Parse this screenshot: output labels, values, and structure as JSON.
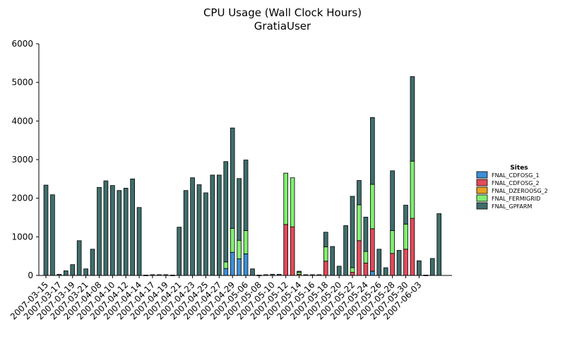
{
  "chart_data": {
    "type": "bar",
    "stacked": true,
    "title": "CPU Usage (Wall Clock Hours)",
    "subtitle": "GratiaUser",
    "ylim": [
      0,
      6000
    ],
    "yticks": [
      0,
      1000,
      2000,
      3000,
      4000,
      5000,
      6000
    ],
    "legend_title": "Sites",
    "legend_position": "right",
    "x_tick_labels": [
      "2007-03-15",
      "2007-03-17",
      "2007-03-19",
      "2007-03-21",
      "2007-04-08",
      "2007-04-10",
      "2007-04-12",
      "2007-04-14",
      "2007-04-17",
      "2007-04-19",
      "2007-04-21",
      "2007-04-23",
      "2007-04-25",
      "2007-04-27",
      "2007-04-29",
      "2007-05-06",
      "2007-05-08",
      "2007-05-10",
      "2007-05-12",
      "2007-05-14",
      "2007-05-16",
      "2007-05-18",
      "2007-05-20",
      "2007-05-22",
      "2007-05-24",
      "2007-05-26",
      "2007-05-28",
      "2007-05-30",
      "2007-06-03"
    ],
    "series": [
      {
        "name": "FNAL_CDFOSG_1",
        "color": "#3e8fd6",
        "values": [
          0,
          0,
          0,
          0,
          0,
          0,
          0,
          0,
          0,
          0,
          0,
          0,
          0,
          0,
          0,
          0,
          0,
          0,
          0,
          0,
          0,
          0,
          0,
          0,
          0,
          0,
          0,
          180,
          600,
          430,
          560,
          0,
          0,
          0,
          0,
          0,
          0,
          0,
          0,
          0,
          0,
          0,
          0,
          0,
          0,
          0,
          0,
          0,
          0,
          110,
          0,
          0,
          0,
          0,
          0,
          0,
          0,
          0,
          0,
          0,
          0,
          0
        ]
      },
      {
        "name": "FNAL_CDFOSG_2",
        "color": "#e24a5a",
        "values": [
          0,
          0,
          0,
          0,
          0,
          0,
          0,
          0,
          0,
          0,
          0,
          0,
          0,
          0,
          0,
          0,
          0,
          0,
          0,
          0,
          0,
          0,
          0,
          0,
          0,
          0,
          0,
          0,
          0,
          0,
          0,
          0,
          0,
          0,
          0,
          0,
          1320,
          1260,
          0,
          0,
          0,
          0,
          370,
          0,
          0,
          0,
          80,
          900,
          320,
          1100,
          0,
          0,
          570,
          0,
          680,
          1480,
          0,
          0,
          0,
          0
        ]
      },
      {
        "name": "FNAL_DZEROOSG_2",
        "color": "#e8a020",
        "values": [
          0,
          0,
          0,
          0,
          0,
          0,
          0,
          0,
          0,
          0,
          0,
          0,
          0,
          0,
          0,
          0,
          0,
          0,
          0,
          0,
          0,
          0,
          0,
          0,
          0,
          0,
          0,
          0,
          0,
          0,
          0,
          0,
          0,
          0,
          0,
          0,
          0,
          0,
          30,
          0,
          0,
          0,
          0,
          0,
          0,
          0,
          0,
          0,
          0,
          0,
          0,
          0,
          0,
          0,
          0,
          0,
          0,
          0,
          0,
          0
        ]
      },
      {
        "name": "FNAL_FERMIGRID",
        "color": "#80ee70",
        "values": [
          0,
          0,
          0,
          0,
          0,
          0,
          0,
          0,
          0,
          0,
          0,
          0,
          0,
          0,
          0,
          0,
          0,
          0,
          0,
          0,
          0,
          0,
          0,
          0,
          0,
          0,
          0,
          170,
          620,
          480,
          600,
          0,
          0,
          0,
          0,
          0,
          1330,
          1270,
          50,
          0,
          0,
          0,
          370,
          0,
          0,
          0,
          120,
          930,
          300,
          1150,
          0,
          0,
          590,
          0,
          650,
          1480,
          0,
          0,
          0,
          0
        ]
      },
      {
        "name": "FNAL_GPFARM",
        "color": "#3f6e6c",
        "values": [
          2340,
          2090,
          30,
          120,
          280,
          900,
          170,
          680,
          2280,
          2450,
          2330,
          2200,
          2260,
          2500,
          1760,
          10,
          20,
          20,
          20,
          10,
          1250,
          2200,
          2530,
          2350,
          2140,
          2600,
          2600,
          2600,
          2600,
          1600,
          1830,
          170,
          10,
          20,
          30,
          30,
          0,
          0,
          30,
          20,
          20,
          20,
          380,
          750,
          240,
          1290,
          1850,
          630,
          890,
          1730,
          680,
          200,
          1550,
          650,
          490,
          2190,
          380,
          10,
          440,
          1600
        ]
      }
    ]
  }
}
